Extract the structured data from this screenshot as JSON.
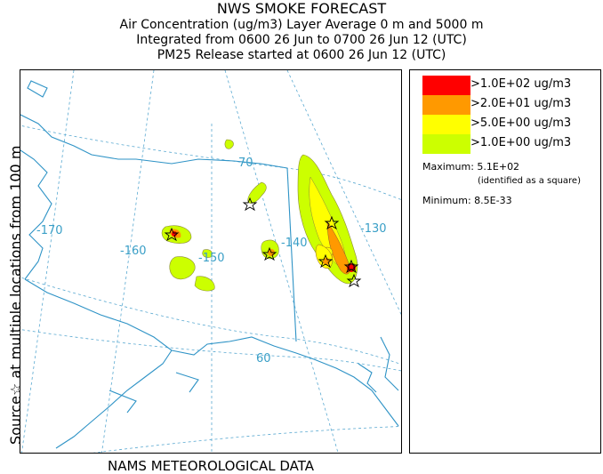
{
  "header": {
    "title": "NWS SMOKE FORECAST",
    "line1": "Air Concentration (ug/m3) Layer Average    0 m and  5000 m",
    "line2": "Integrated from 0600 26 Jun to 0700 26 Jun 12 (UTC)",
    "line3": "PM25 Release started at 0600 26 Jun 12 (UTC)"
  },
  "side_label": "Source☆ at multiple locations   from   100 m",
  "footer": "NAMS METEOROLOGICAL DATA",
  "map": {
    "graticule_labels": [
      "-170",
      "-160",
      "-150",
      "-140",
      "-130",
      "70",
      "60"
    ],
    "colors": {
      "coast": "#2e93c6",
      "graticule": "#5aa9d1",
      "label": "#3a9fc7"
    }
  },
  "legend": {
    "items": [
      {
        "label": ">1.0E+02 ug/m3",
        "color": "#ff0000"
      },
      {
        "label": ">2.0E+01 ug/m3",
        "color": "#ff9900"
      },
      {
        "label": ">5.0E+00 ug/m3",
        "color": "#ffff00"
      },
      {
        "label": ">1.0E+00 ug/m3",
        "color": "#ccff00"
      }
    ],
    "maximum": "Maximum: 5.1E+02",
    "maximum_note": "(identified as a square)",
    "minimum": "Minimum: 8.5E-33"
  }
}
